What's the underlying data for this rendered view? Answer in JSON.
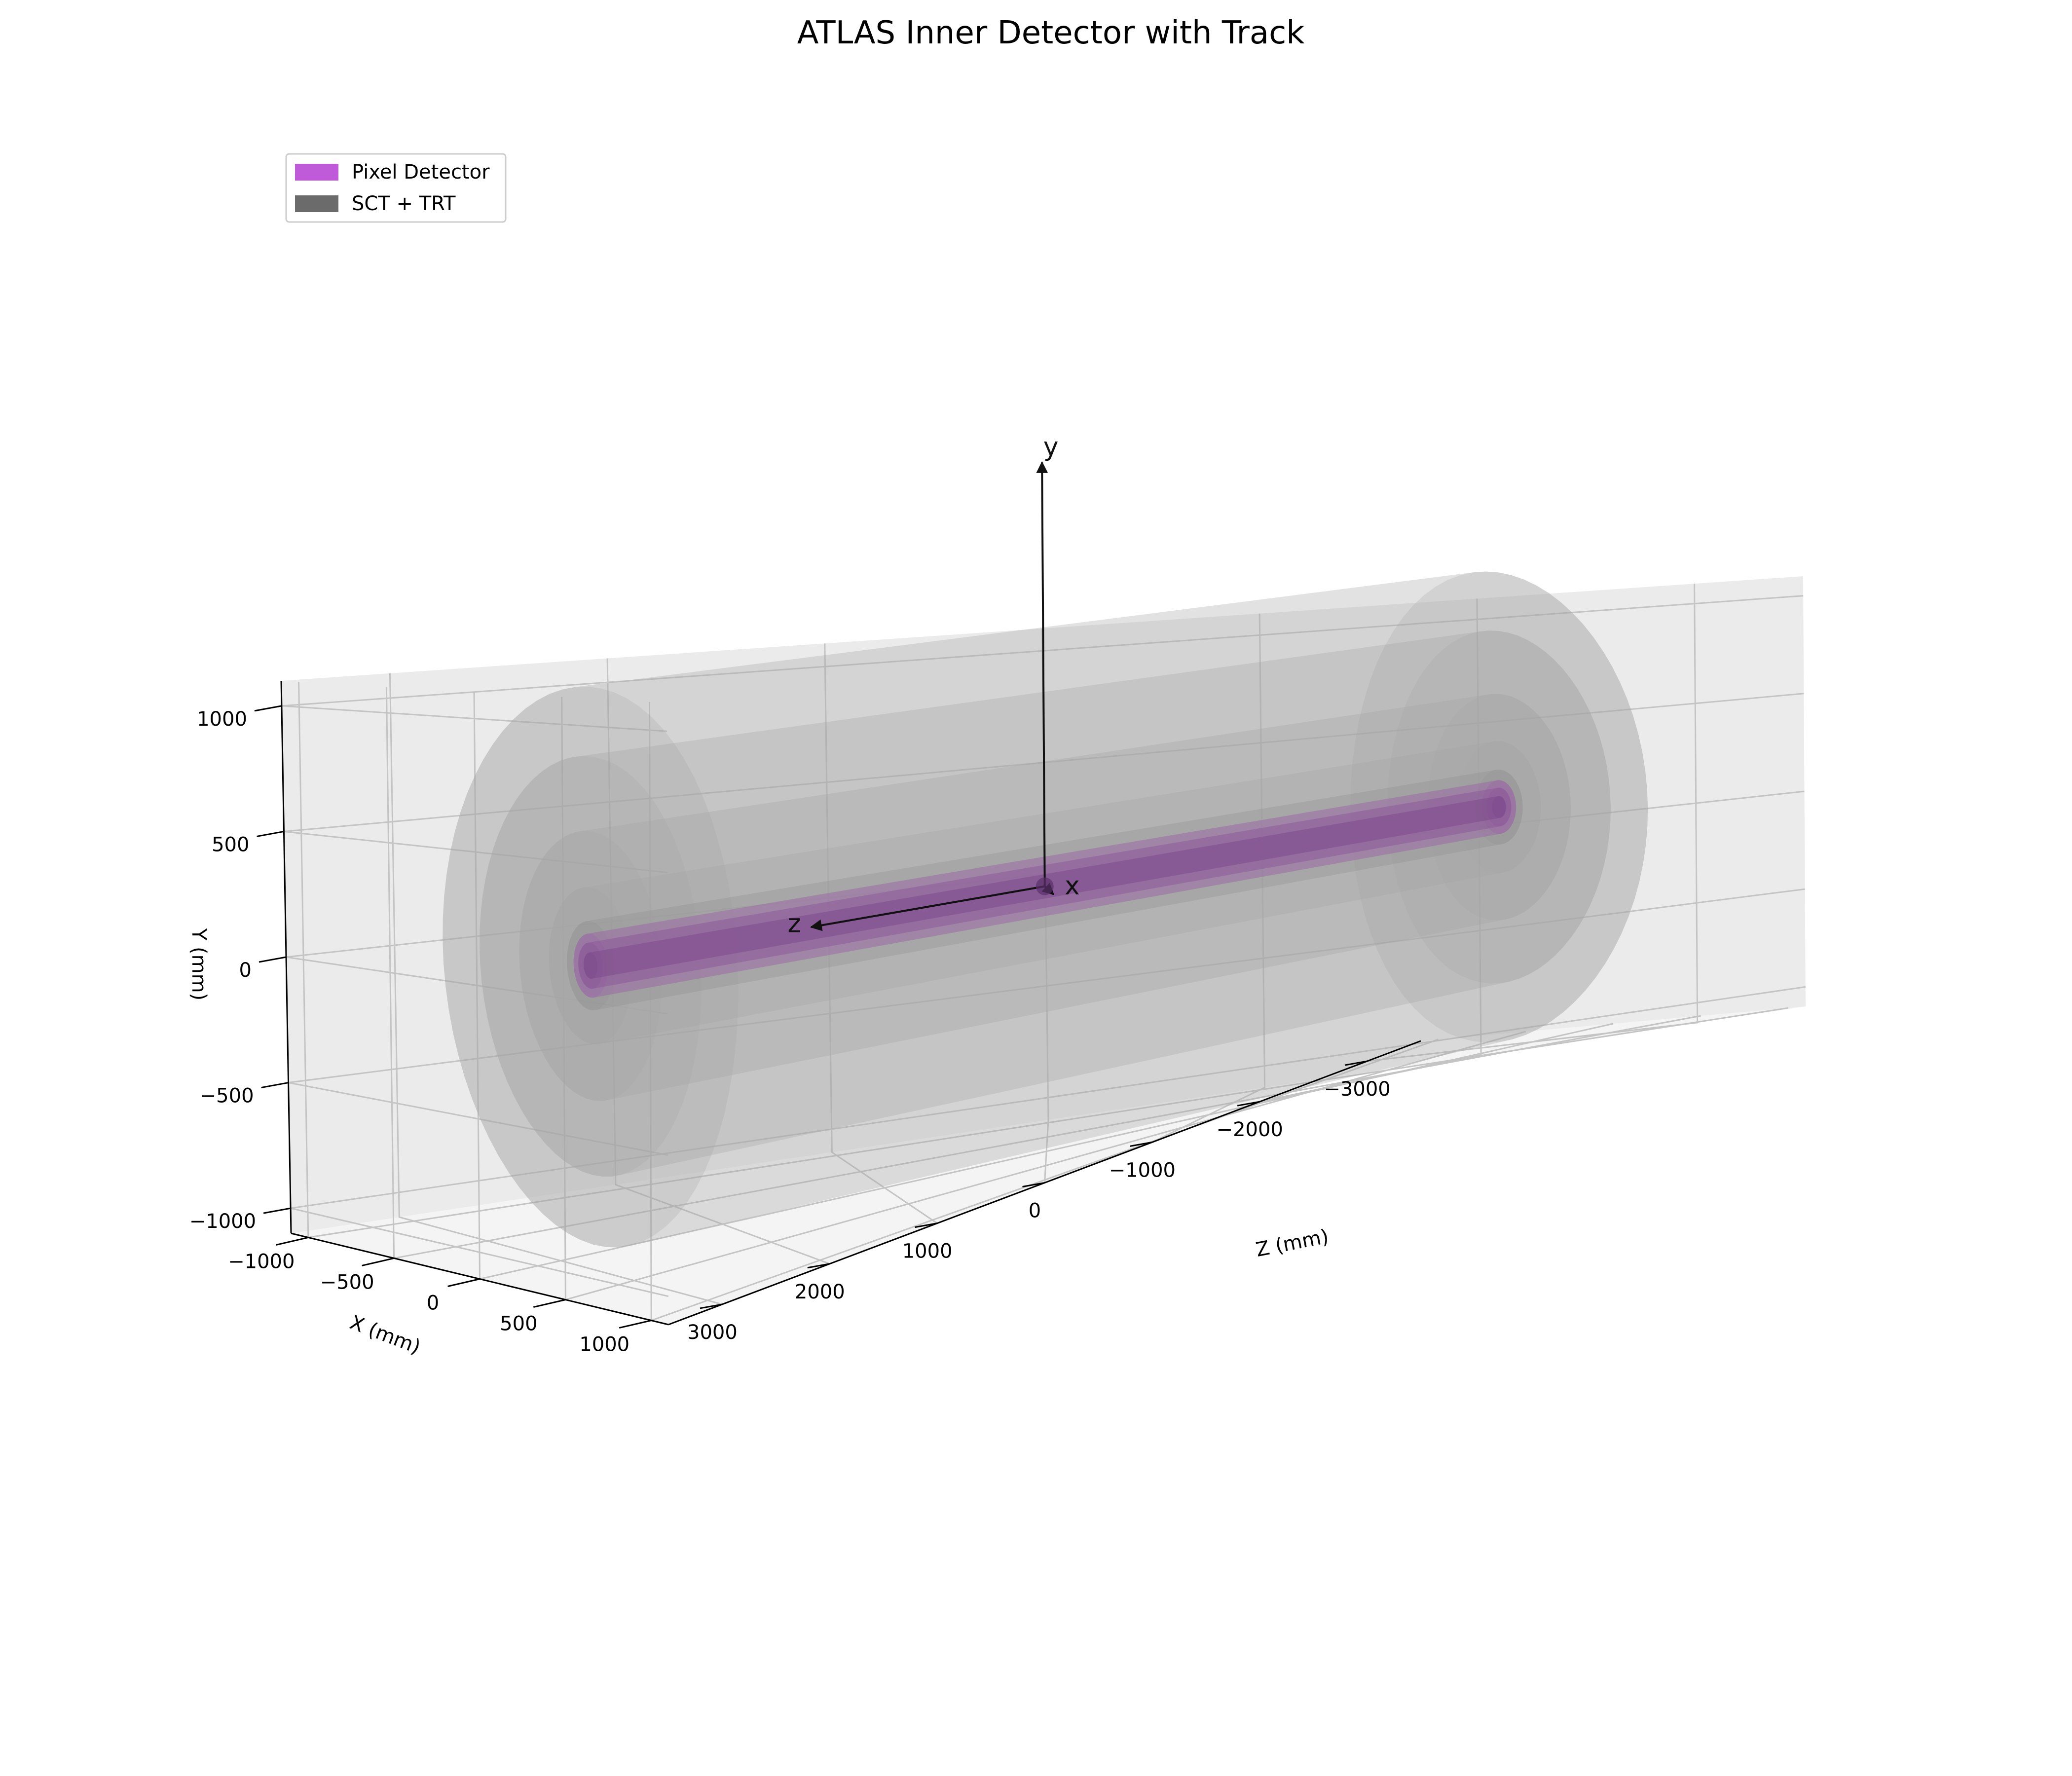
{
  "chart_data": {
    "type": "3d-surface",
    "title": "ATLAS Inner Detector with Track",
    "xlabel": "X (mm)",
    "ylabel": "Y (mm)",
    "zlabel": "Z (mm)",
    "xlim": [
      -1100,
      1100
    ],
    "ylim": [
      -1100,
      1100
    ],
    "zlim": [
      -3500,
      3500
    ],
    "x_ticks": [
      -1000,
      -500,
      0,
      500,
      1000
    ],
    "y_ticks": [
      -1000,
      -500,
      0,
      500,
      1000
    ],
    "z_ticks": [
      3000,
      2000,
      1000,
      0,
      -1000,
      -2000,
      -3000
    ],
    "x_tick_labels": [
      "−1000",
      "−500",
      "0",
      "500",
      "1000"
    ],
    "y_tick_labels": [
      "−1000",
      "−500",
      "0",
      "500",
      "1000"
    ],
    "z_tick_labels": [
      "3000",
      "2000",
      "1000",
      "0",
      "−1000",
      "−2000",
      "−3000"
    ],
    "legend": {
      "placement": "upper-left",
      "entries": [
        {
          "label": "Pixel Detector",
          "color": "#bf5bd8"
        },
        {
          "label": "SCT + TRT",
          "color": "#6b6b6b"
        }
      ]
    },
    "components": [
      {
        "group": "SCT + TRT",
        "radius": 1066,
        "half_length": 2800,
        "color": "#a6a6a6"
      },
      {
        "group": "SCT + TRT",
        "radius": 800,
        "half_length": 2800,
        "color": "#a6a6a6"
      },
      {
        "group": "SCT + TRT",
        "radius": 514,
        "half_length": 2800,
        "color": "#a6a6a6"
      },
      {
        "group": "SCT + TRT",
        "radius": 299,
        "half_length": 2800,
        "color": "#a6a6a6"
      },
      {
        "group": "SCT + TRT",
        "radius": 170,
        "half_length": 2800,
        "color": "#909090"
      },
      {
        "group": "Pixel Detector",
        "radius": 122,
        "half_length": 2800,
        "color": "#9b6aa6"
      },
      {
        "group": "Pixel Detector",
        "radius": 88,
        "half_length": 2800,
        "color": "#8c5a99"
      },
      {
        "group": "Pixel Detector",
        "radius": 50,
        "half_length": 2800,
        "color": "#7d4a8c"
      }
    ],
    "quiver": {
      "origin": [
        0,
        0,
        0
      ],
      "labels": [
        "x",
        "y",
        "z"
      ],
      "length": 1600,
      "color": "#111111"
    },
    "grid": true
  }
}
